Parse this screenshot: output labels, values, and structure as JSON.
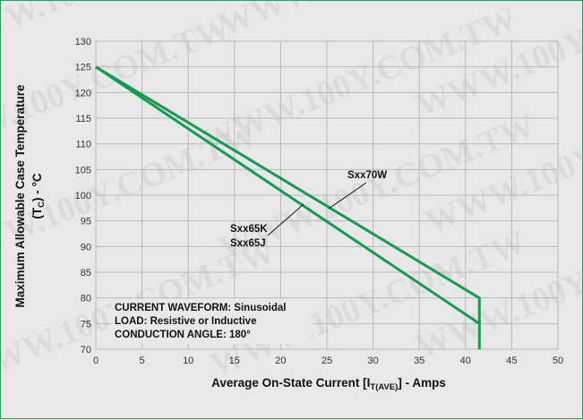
{
  "watermark": "WWW.100Y.COM.TW",
  "colors": {
    "series": "#169a4f",
    "grid": "#b8b8b8",
    "background": "#e8e8e8",
    "border": "#2a9d57"
  },
  "chart_data": {
    "type": "line",
    "xlabel_main": "Average On-State Current [I",
    "xlabel_sub": "T(AVE)",
    "xlabel_tail": "] - Amps",
    "ylabel_line1": "Maximum Allowable Case Temperature",
    "ylabel_line2_pre": "(T",
    "ylabel_line2_sub": "C",
    "ylabel_line2_post": ") - °C",
    "xlim": [
      0,
      50
    ],
    "ylim": [
      70,
      130
    ],
    "xticks": [
      0,
      5,
      10,
      15,
      20,
      25,
      30,
      35,
      40,
      45,
      50
    ],
    "yticks": [
      70,
      75,
      80,
      85,
      90,
      95,
      100,
      105,
      110,
      115,
      120,
      125,
      130
    ],
    "grid": true,
    "series": [
      {
        "name": "Sxx70W",
        "x": [
          0,
          41.5,
          41.5
        ],
        "y": [
          125,
          80,
          70
        ]
      },
      {
        "name": "Sxx65K / Sxx65J",
        "x": [
          0,
          41.5
        ],
        "y": [
          125,
          75
        ]
      }
    ],
    "labels": {
      "sxx70w": "Sxx70W",
      "sxx65k": "Sxx65K",
      "sxx65j": "Sxx65J"
    },
    "waveform_box": {
      "line1": "CURRENT WAVEFORM: Sinusoidal",
      "line2": "LOAD: Resistive or Inductive",
      "line3": "CONDUCTION ANGLE: 180°"
    }
  }
}
